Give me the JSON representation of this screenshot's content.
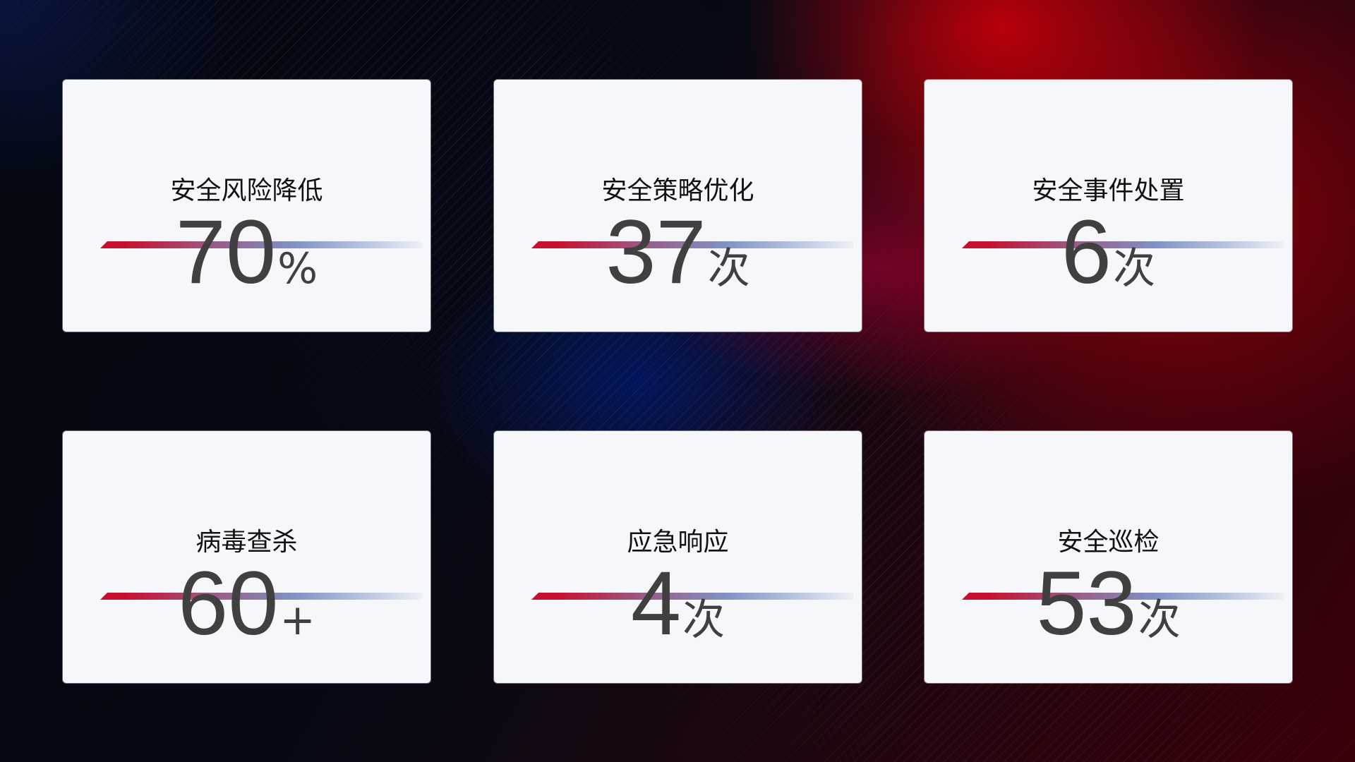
{
  "cards": [
    {
      "title": "安全风险降低",
      "value": "70",
      "unit": "%"
    },
    {
      "title": "安全策略优化",
      "value": "37",
      "unit": "次"
    },
    {
      "title": "安全事件处置",
      "value": "6",
      "unit": "次"
    },
    {
      "title": "病毒查杀",
      "value": "60",
      "unit": "+"
    },
    {
      "title": "应急响应",
      "value": "4",
      "unit": "次"
    },
    {
      "title": "安全巡检",
      "value": "53",
      "unit": "次"
    }
  ],
  "colors": {
    "accent_red": "#c8102e",
    "accent_blue": "#7f92c4",
    "card_bg": "#f5f7fb",
    "value_text": "#404040"
  }
}
